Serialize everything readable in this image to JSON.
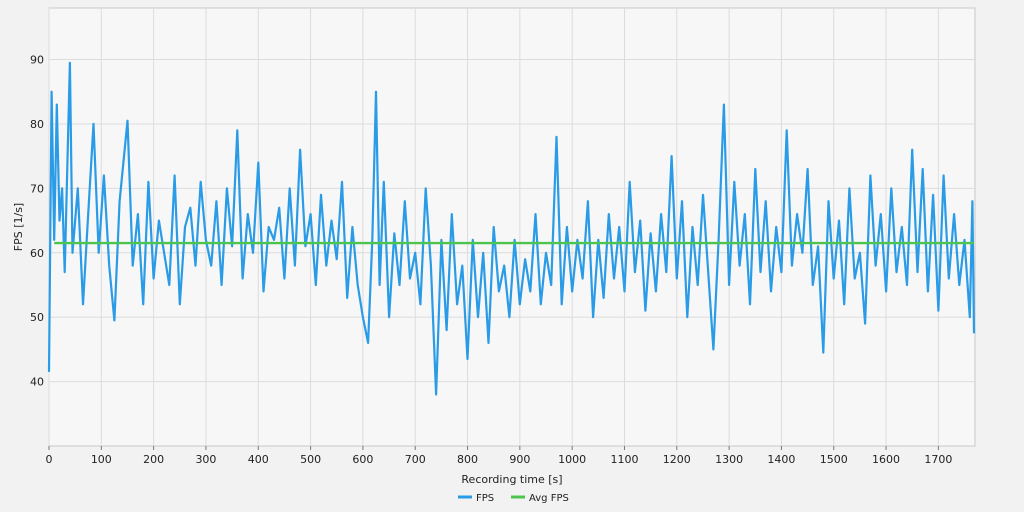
{
  "chart_data": {
    "type": "line",
    "title": "",
    "xlabel": "Recording time [s]",
    "ylabel": "FPS [1/s]",
    "xlim": [
      0,
      1770
    ],
    "ylim": [
      30,
      98
    ],
    "x_ticks": [
      0,
      100,
      200,
      300,
      400,
      500,
      600,
      700,
      800,
      900,
      1000,
      1100,
      1200,
      1300,
      1400,
      1500,
      1600,
      1700
    ],
    "y_ticks": [
      40,
      50,
      60,
      70,
      80,
      90
    ],
    "grid": true,
    "legend_position": "bottom-center",
    "series": [
      {
        "name": "FPS",
        "color": "#2a9be6",
        "points": [
          [
            0,
            41.5
          ],
          [
            5,
            85
          ],
          [
            10,
            62
          ],
          [
            15,
            83
          ],
          [
            20,
            65
          ],
          [
            25,
            70
          ],
          [
            30,
            57
          ],
          [
            40,
            89.5
          ],
          [
            45,
            60
          ],
          [
            55,
            70
          ],
          [
            65,
            52
          ],
          [
            75,
            66
          ],
          [
            85,
            80
          ],
          [
            95,
            60
          ],
          [
            105,
            72
          ],
          [
            115,
            58
          ],
          [
            125,
            49.5
          ],
          [
            135,
            68
          ],
          [
            150,
            80.5
          ],
          [
            160,
            58
          ],
          [
            170,
            66
          ],
          [
            180,
            52
          ],
          [
            190,
            71
          ],
          [
            200,
            56
          ],
          [
            210,
            65
          ],
          [
            220,
            60
          ],
          [
            230,
            55
          ],
          [
            240,
            72
          ],
          [
            250,
            52
          ],
          [
            260,
            64
          ],
          [
            270,
            67
          ],
          [
            280,
            58
          ],
          [
            290,
            71
          ],
          [
            300,
            62
          ],
          [
            310,
            58
          ],
          [
            320,
            68
          ],
          [
            330,
            55
          ],
          [
            340,
            70
          ],
          [
            350,
            61
          ],
          [
            360,
            79
          ],
          [
            370,
            56
          ],
          [
            380,
            66
          ],
          [
            390,
            60
          ],
          [
            400,
            74
          ],
          [
            410,
            54
          ],
          [
            420,
            64
          ],
          [
            430,
            62
          ],
          [
            440,
            67
          ],
          [
            450,
            56
          ],
          [
            460,
            70
          ],
          [
            470,
            58
          ],
          [
            480,
            76
          ],
          [
            490,
            61
          ],
          [
            500,
            66
          ],
          [
            510,
            55
          ],
          [
            520,
            69
          ],
          [
            530,
            58
          ],
          [
            540,
            65
          ],
          [
            550,
            59
          ],
          [
            560,
            71
          ],
          [
            570,
            53
          ],
          [
            580,
            64
          ],
          [
            590,
            55
          ],
          [
            600,
            50
          ],
          [
            610,
            46
          ],
          [
            618,
            62
          ],
          [
            625,
            85
          ],
          [
            632,
            55
          ],
          [
            640,
            71
          ],
          [
            650,
            50
          ],
          [
            660,
            63
          ],
          [
            670,
            55
          ],
          [
            680,
            68
          ],
          [
            690,
            56
          ],
          [
            700,
            60
          ],
          [
            710,
            52
          ],
          [
            720,
            70
          ],
          [
            730,
            58
          ],
          [
            740,
            38
          ],
          [
            750,
            62
          ],
          [
            760,
            48
          ],
          [
            770,
            66
          ],
          [
            780,
            52
          ],
          [
            790,
            58
          ],
          [
            800,
            43.5
          ],
          [
            810,
            62
          ],
          [
            820,
            50
          ],
          [
            830,
            60
          ],
          [
            840,
            46
          ],
          [
            850,
            64
          ],
          [
            860,
            54
          ],
          [
            870,
            58
          ],
          [
            880,
            50
          ],
          [
            890,
            62
          ],
          [
            900,
            52
          ],
          [
            910,
            59
          ],
          [
            920,
            54
          ],
          [
            930,
            66
          ],
          [
            940,
            52
          ],
          [
            950,
            60
          ],
          [
            960,
            55
          ],
          [
            970,
            78
          ],
          [
            980,
            52
          ],
          [
            990,
            64
          ],
          [
            1000,
            54
          ],
          [
            1010,
            62
          ],
          [
            1020,
            56
          ],
          [
            1030,
            68
          ],
          [
            1040,
            50
          ],
          [
            1050,
            62
          ],
          [
            1060,
            53
          ],
          [
            1070,
            66
          ],
          [
            1080,
            56
          ],
          [
            1090,
            64
          ],
          [
            1100,
            54
          ],
          [
            1110,
            71
          ],
          [
            1120,
            57
          ],
          [
            1130,
            65
          ],
          [
            1140,
            51
          ],
          [
            1150,
            63
          ],
          [
            1160,
            54
          ],
          [
            1170,
            66
          ],
          [
            1180,
            57
          ],
          [
            1190,
            75
          ],
          [
            1200,
            56
          ],
          [
            1210,
            68
          ],
          [
            1220,
            50
          ],
          [
            1230,
            64
          ],
          [
            1240,
            55
          ],
          [
            1250,
            69
          ],
          [
            1260,
            57
          ],
          [
            1270,
            45
          ],
          [
            1280,
            62
          ],
          [
            1290,
            83
          ],
          [
            1300,
            55
          ],
          [
            1310,
            71
          ],
          [
            1320,
            58
          ],
          [
            1330,
            66
          ],
          [
            1340,
            52
          ],
          [
            1350,
            73
          ],
          [
            1360,
            57
          ],
          [
            1370,
            68
          ],
          [
            1380,
            54
          ],
          [
            1390,
            64
          ],
          [
            1400,
            57
          ],
          [
            1410,
            79
          ],
          [
            1420,
            58
          ],
          [
            1430,
            66
          ],
          [
            1440,
            60
          ],
          [
            1450,
            73
          ],
          [
            1460,
            55
          ],
          [
            1470,
            61
          ],
          [
            1480,
            44.5
          ],
          [
            1490,
            68
          ],
          [
            1500,
            56
          ],
          [
            1510,
            65
          ],
          [
            1520,
            52
          ],
          [
            1530,
            70
          ],
          [
            1540,
            56
          ],
          [
            1550,
            60
          ],
          [
            1560,
            49
          ],
          [
            1570,
            72
          ],
          [
            1580,
            58
          ],
          [
            1590,
            66
          ],
          [
            1600,
            54
          ],
          [
            1610,
            70
          ],
          [
            1620,
            57
          ],
          [
            1630,
            64
          ],
          [
            1640,
            55
          ],
          [
            1650,
            76
          ],
          [
            1660,
            57
          ],
          [
            1670,
            73
          ],
          [
            1680,
            54
          ],
          [
            1690,
            69
          ],
          [
            1700,
            51
          ],
          [
            1710,
            72
          ],
          [
            1720,
            56
          ],
          [
            1730,
            66
          ],
          [
            1740,
            55
          ],
          [
            1750,
            62
          ],
          [
            1760,
            50
          ],
          [
            1765,
            68
          ],
          [
            1768,
            47.5
          ]
        ]
      },
      {
        "name": "Avg FPS",
        "color": "#4dc44d",
        "points": [
          [
            10,
            61.5
          ],
          [
            1768,
            61.5
          ]
        ]
      }
    ]
  }
}
